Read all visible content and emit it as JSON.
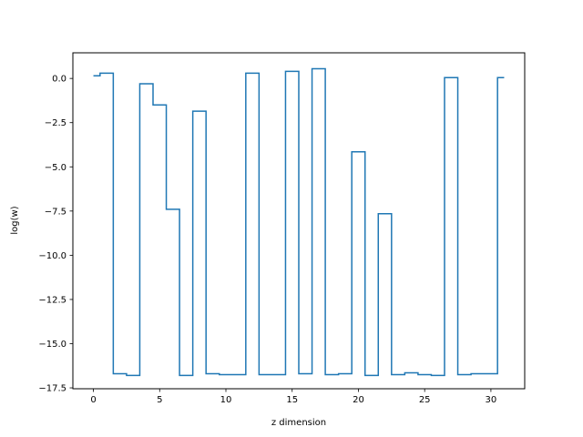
{
  "chart_data": {
    "type": "line",
    "drawstyle": "steps-mid",
    "xlabel": "z dimension",
    "ylabel": "log(w)",
    "xlim": [
      -1.55,
      32.55
    ],
    "ylim": [
      -17.55,
      1.45
    ],
    "xticks": [
      0,
      5,
      10,
      15,
      20,
      25,
      30
    ],
    "xtick_labels": [
      "0",
      "5",
      "10",
      "15",
      "20",
      "25",
      "30"
    ],
    "yticks": [
      0.0,
      -2.5,
      -5.0,
      -7.5,
      -10.0,
      -12.5,
      -15.0,
      -17.5
    ],
    "ytick_labels": [
      "0.0",
      "−2.5",
      "−5.0",
      "−7.5",
      "−10.0",
      "−12.5",
      "−15.0",
      "−17.5"
    ],
    "grid": false,
    "color": "#1f77b4",
    "series": [
      {
        "x": [
          0,
          1,
          2,
          3,
          4,
          5,
          6,
          7,
          8,
          9,
          10,
          11,
          12,
          13,
          14,
          15,
          16,
          17,
          18,
          19,
          20,
          21,
          22,
          23,
          24,
          25,
          26,
          27,
          28,
          29,
          30,
          31
        ],
        "values": [
          0.15,
          0.3,
          -16.7,
          -16.8,
          -0.3,
          -1.5,
          -7.4,
          -16.8,
          -1.85,
          -16.7,
          -16.75,
          -16.75,
          0.3,
          -16.75,
          -16.75,
          0.4,
          -16.7,
          0.55,
          -16.75,
          -16.7,
          -4.15,
          -16.8,
          -7.65,
          -16.75,
          -16.65,
          -16.75,
          -16.8,
          0.05,
          -16.75,
          -16.7,
          -16.7,
          0.05
        ]
      }
    ]
  }
}
